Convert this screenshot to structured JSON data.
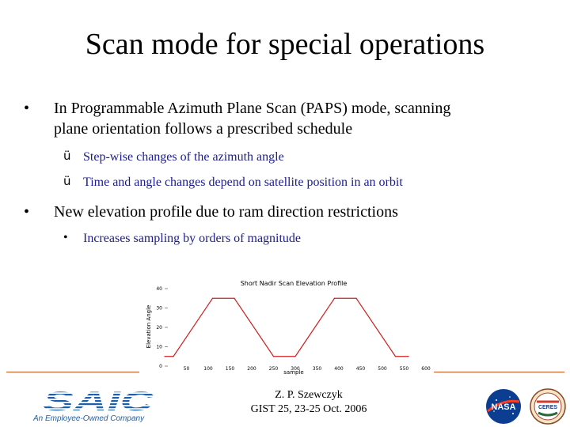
{
  "slide": {
    "title": "Scan mode for special operations",
    "bullets": [
      {
        "text_line1": "In Programmable Azimuth Plane Scan (PAPS) mode, scanning",
        "text_line2": "plane orientation follows a prescribed schedule",
        "sub_items": [
          "Step-wise changes of the azimuth angle",
          "Time and angle changes depend on satellite position in an orbit"
        ]
      },
      {
        "text_line1": "New elevation profile due to ram direction restrictions",
        "sub_items": [
          "Increases sampling by orders of magnitude"
        ]
      }
    ],
    "bullet_marker": "•",
    "check_marker": "ü",
    "sub_dot_marker": "•"
  },
  "chart_data": {
    "type": "line",
    "title": "Short Nadir Scan Elevation Profile",
    "xlabel": "sample",
    "ylabel": "Elevation Angle",
    "xlim": [
      0,
      600
    ],
    "ylim": [
      0,
      40
    ],
    "x_ticks": [
      "50",
      "100",
      "150",
      "200",
      "250",
      "300",
      "350",
      "400",
      "450",
      "500",
      "550",
      "600"
    ],
    "y_ticks": [
      "0",
      "10",
      "20",
      "30",
      "40"
    ],
    "x": [
      0,
      20,
      110,
      160,
      250,
      300,
      390,
      440,
      530,
      560
    ],
    "y": [
      5,
      5,
      35,
      35,
      5,
      5,
      35,
      35,
      5,
      5
    ],
    "line_color": "#cc2020"
  },
  "footer": {
    "logo_text": "SAIC",
    "logo_tagline": "An Employee-Owned Company",
    "author": "Z. P. Szewczyk",
    "event": "GIST 25, 23-25 Oct. 2006",
    "nasa_label": "NASA",
    "ceres_label": "CERES",
    "logo_color": "#1f5fa8",
    "accent_color": "#c8501e"
  }
}
